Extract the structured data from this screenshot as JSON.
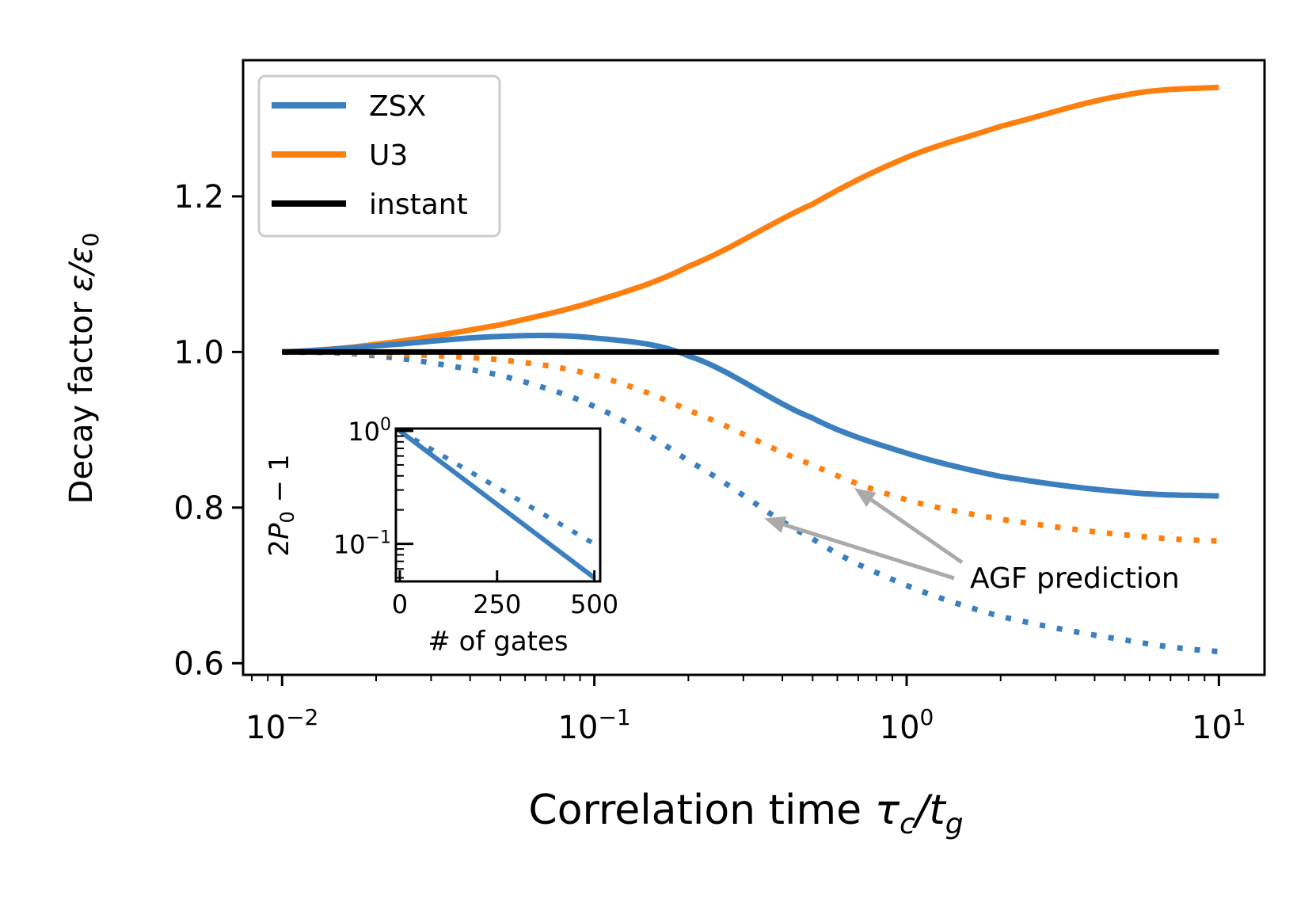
{
  "chart_data": [
    {
      "type": "line",
      "xlabel": "Correlation time τc/tg",
      "xlabel_main": "Correlation time ",
      "xlabel_math": {
        "base1": "τ",
        "sub1": "c",
        "slash": "/",
        "base2": "t",
        "sub2": "g"
      },
      "ylabel": "Decay factor ε/ε0",
      "ylabel_main": "Decay factor ",
      "ylabel_math": {
        "base1": "ε",
        "slash": "/",
        "base2": "ε",
        "sub2": "0"
      },
      "x_scale": "log",
      "xlim": [
        0.0075,
        14.0
      ],
      "ylim": [
        0.585,
        1.375
      ],
      "x_ticks": [
        0.01,
        0.1,
        1,
        10
      ],
      "x_tick_labels": [
        {
          "base": "10",
          "exp": "−2"
        },
        {
          "base": "10",
          "exp": "−1"
        },
        {
          "base": "10",
          "exp": "0"
        },
        {
          "base": "10",
          "exp": "1"
        }
      ],
      "y_ticks": [
        0.6,
        0.8,
        1.0,
        1.2
      ],
      "y_tick_labels": [
        "0.6",
        "0.8",
        "1.0",
        "1.2"
      ],
      "grid": false,
      "legend_placement": "top-left",
      "x": [
        0.01,
        0.02,
        0.05,
        0.1,
        0.2,
        0.5,
        1,
        2,
        5,
        10
      ],
      "series": [
        {
          "name": "ZSX",
          "style": "solid",
          "color": "#3b7fbf",
          "values": [
            1.0,
            1.008,
            1.02,
            1.018,
            0.995,
            0.915,
            0.87,
            0.84,
            0.82,
            0.815
          ]
        },
        {
          "name": "U3",
          "style": "solid",
          "color": "#ff7f0e",
          "values": [
            1.0,
            1.01,
            1.035,
            1.065,
            1.11,
            1.19,
            1.25,
            1.29,
            1.33,
            1.34
          ]
        },
        {
          "name": "instant",
          "style": "solid",
          "color": "#000000",
          "values": [
            1.0,
            1.0,
            1.0,
            1.0,
            1.0,
            1.0,
            1.0,
            1.0,
            1.0,
            1.0
          ]
        },
        {
          "style": "dotted",
          "color": "#3b7fbf",
          "values": [
            1.0,
            0.995,
            0.97,
            0.93,
            0.86,
            0.76,
            0.7,
            0.66,
            0.63,
            0.615
          ]
        },
        {
          "style": "dotted",
          "color": "#ff7f0e",
          "values": [
            1.0,
            0.998,
            0.99,
            0.97,
            0.925,
            0.855,
            0.81,
            0.785,
            0.765,
            0.757
          ]
        }
      ],
      "annotation": {
        "text": "AGF prediction",
        "arrow_color": "#aaaaaa",
        "arrow_targets": [
          {
            "x": 0.35,
            "y": 0.786
          },
          {
            "x": 0.68,
            "y": 0.825
          }
        ]
      }
    },
    {
      "type": "line",
      "role": "inset",
      "xlabel": "# of gates",
      "ylabel": "2P0 − 1",
      "ylabel_parts": {
        "pre": "2",
        "base": "P",
        "sub": "0",
        "post": " − 1"
      },
      "y_scale": "log",
      "xlim": [
        -10,
        515
      ],
      "ylim": [
        0.0465,
        1.05
      ],
      "x_ticks": [
        0,
        250,
        500
      ],
      "x_tick_labels": [
        "0",
        "250",
        "500"
      ],
      "y_ticks": [
        1,
        0.1
      ],
      "y_tick_labels": [
        {
          "base": "10",
          "exp": "0"
        },
        {
          "base": "10",
          "exp": "−1"
        }
      ],
      "x": [
        0,
        500
      ],
      "series": [
        {
          "style": "solid",
          "color": "#3b7fbf",
          "values": [
            1.0,
            0.05
          ]
        },
        {
          "style": "dotted",
          "color": "#3b7fbf",
          "values": [
            1.0,
            0.1
          ]
        }
      ]
    }
  ]
}
